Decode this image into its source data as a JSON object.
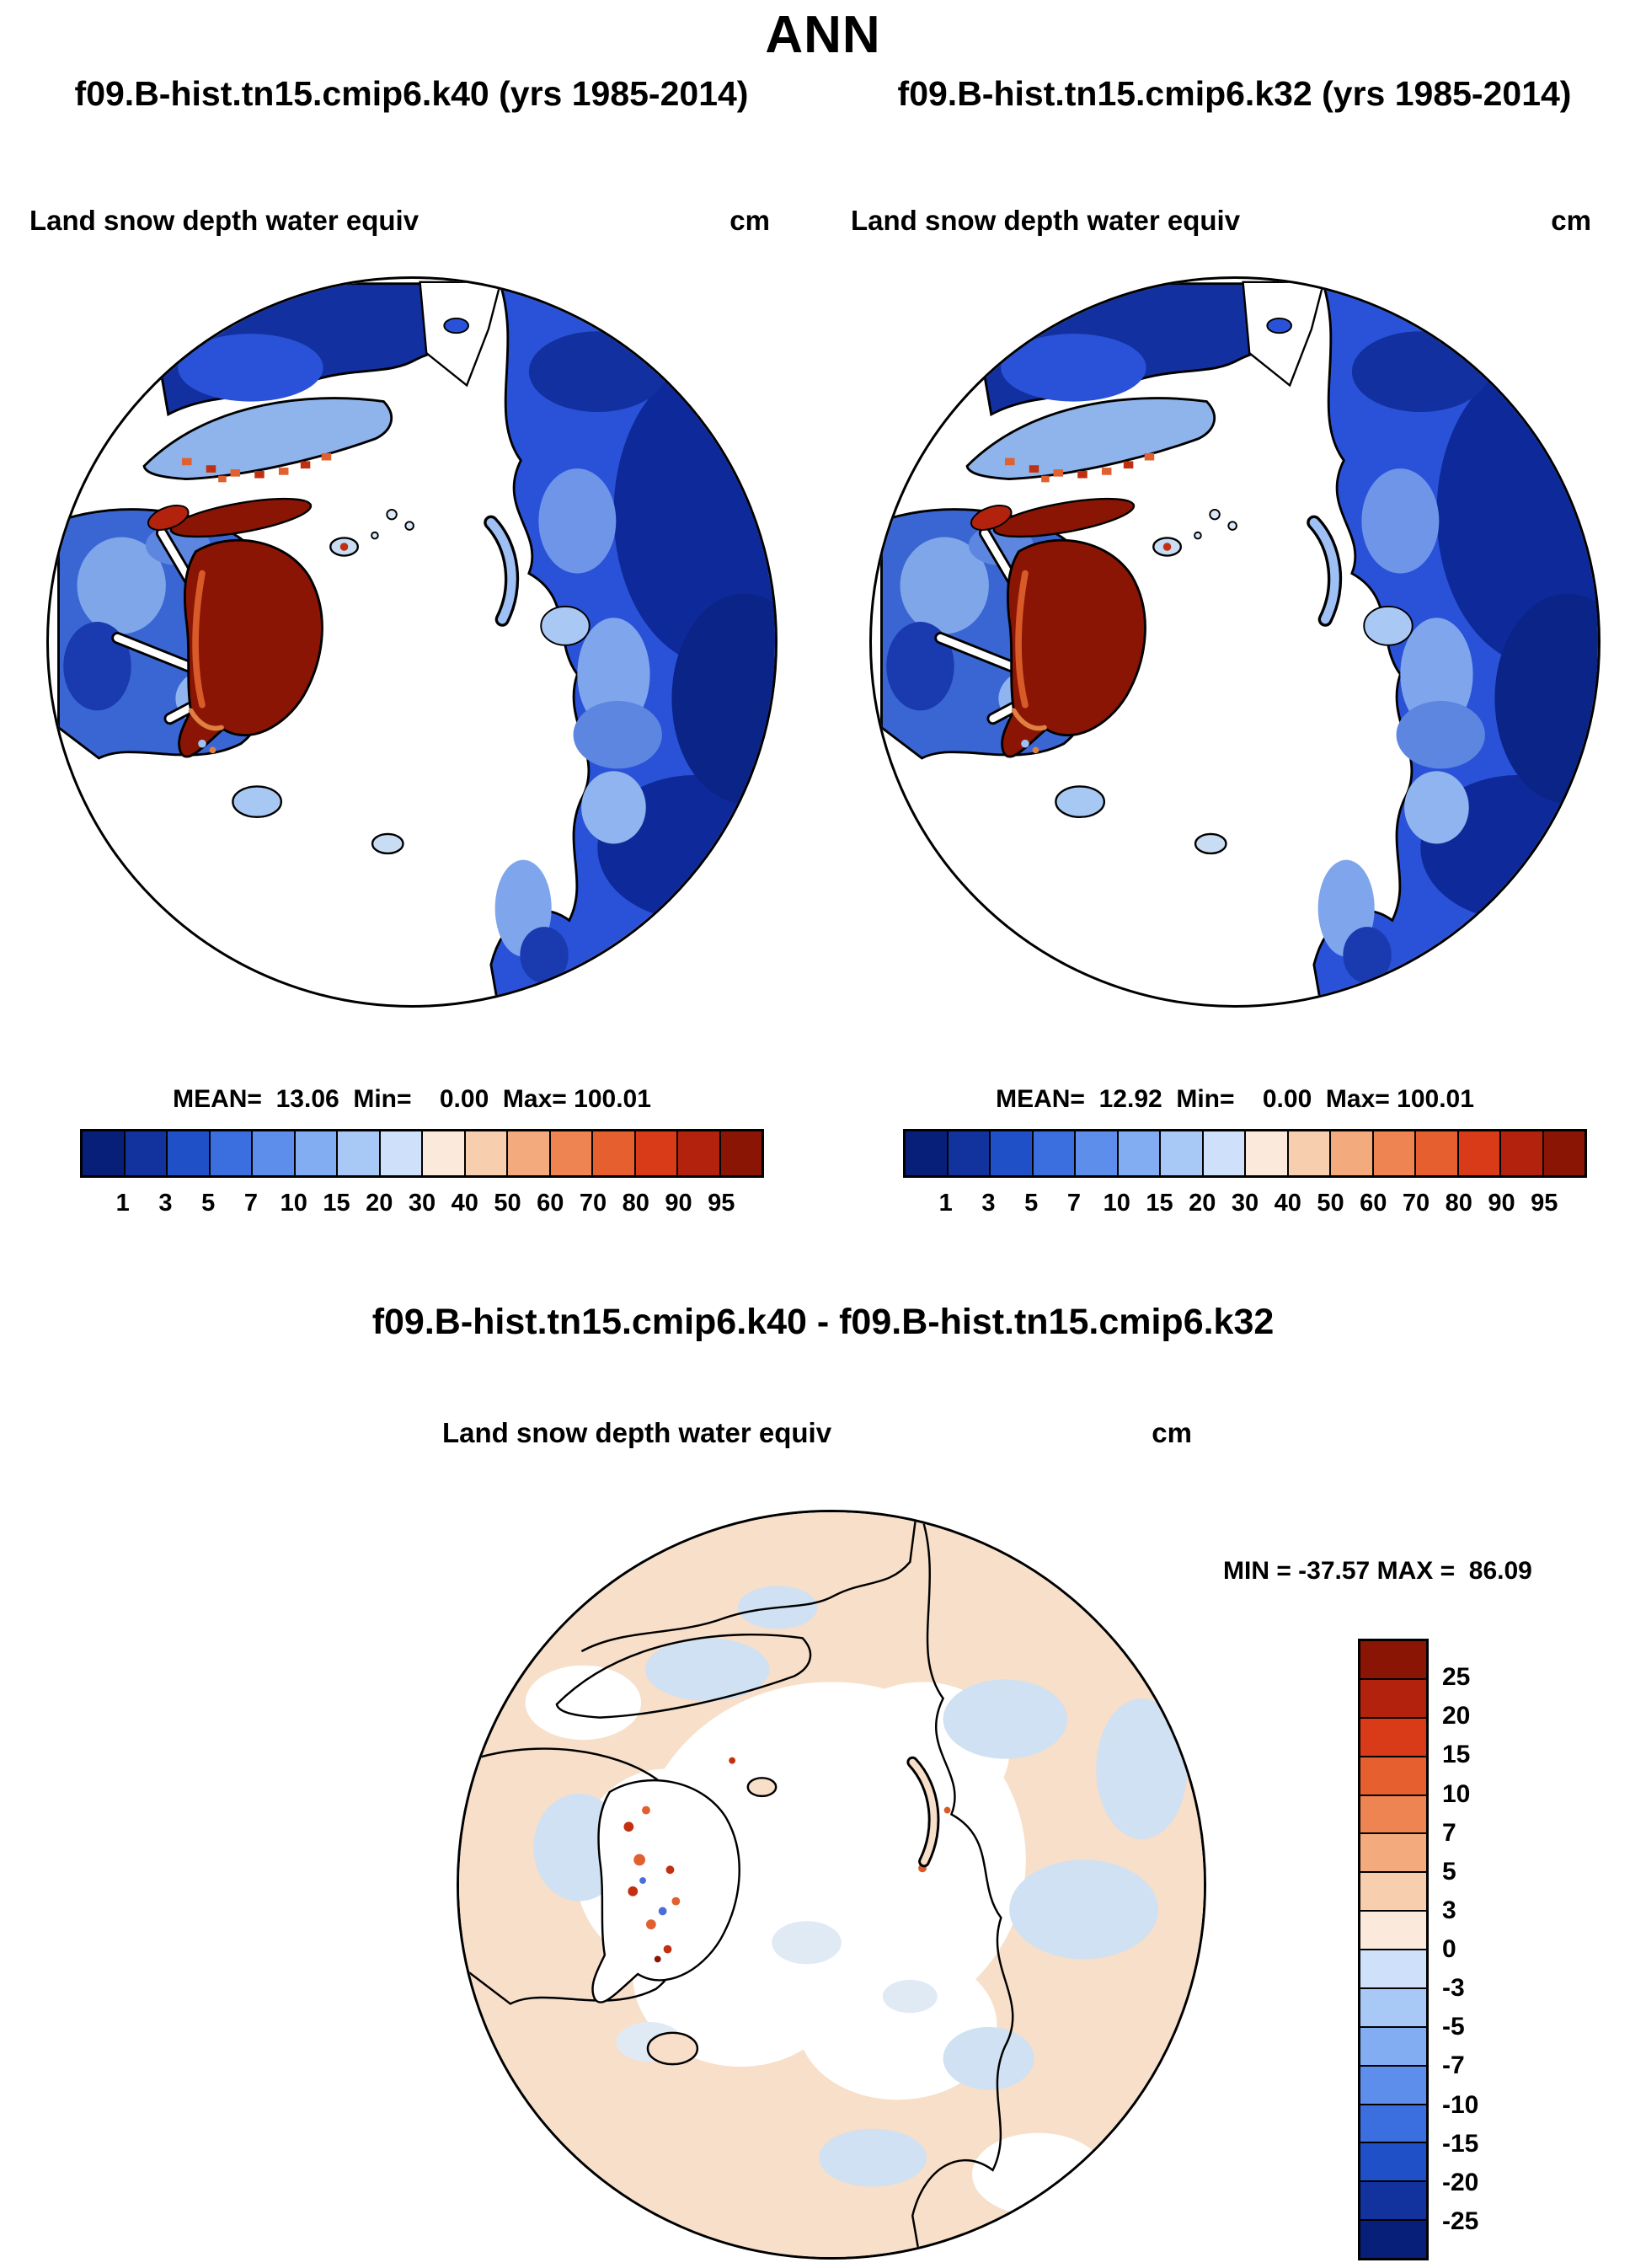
{
  "header": {
    "title": "ANN",
    "case_left": "f09.B-hist.tn15.cmip6.k40 (yrs 1985-2014)",
    "case_right": "f09.B-hist.tn15.cmip6.k32 (yrs 1985-2014)"
  },
  "panels": [
    {
      "title": "Land snow depth water equiv",
      "units": "cm",
      "stats": "MEAN=  13.06  Min=    0.00  Max= 100.01"
    },
    {
      "title": "Land snow depth water equiv",
      "units": "cm",
      "stats": "MEAN=  12.92  Min=    0.00  Max= 100.01"
    }
  ],
  "colorbar": {
    "ticks": [
      "1",
      "3",
      "5",
      "7",
      "10",
      "15",
      "20",
      "30",
      "40",
      "50",
      "60",
      "70",
      "80",
      "90",
      "95"
    ],
    "colors": [
      "#081f7a",
      "#12339e",
      "#2050c8",
      "#3b6fe0",
      "#5d8eec",
      "#82adf2",
      "#a8c8f6",
      "#cfe0fa",
      "#fbeadb",
      "#f8cfae",
      "#f3ab7e",
      "#ee8451",
      "#e65f2e",
      "#d93a17",
      "#b2220c",
      "#8a1505"
    ]
  },
  "diff": {
    "heading": "f09.B-hist.tn15.cmip6.k40 - f09.B-hist.tn15.cmip6.k32",
    "panel_title": "Land snow depth water equiv",
    "units": "cm",
    "minmax": "MIN = -37.57 MAX =  86.09",
    "colorbar": {
      "ticks": [
        "25",
        "20",
        "15",
        "10",
        "7",
        "5",
        "3",
        "0",
        "-3",
        "-5",
        "-7",
        "-10",
        "-15",
        "-20",
        "-25"
      ],
      "colors": [
        "#8a1505",
        "#b2220c",
        "#d93a17",
        "#e65f2e",
        "#ee8451",
        "#f3ab7e",
        "#f8cfae",
        "#fbeadb",
        "#cfe0fa",
        "#a8c8f6",
        "#82adf2",
        "#5d8eec",
        "#3b6fe0",
        "#2050c8",
        "#12339e",
        "#081f7a"
      ]
    }
  },
  "chart_data": [
    {
      "type": "heatmap",
      "projection": "north-polar-stereographic",
      "title": "Land snow depth water equiv",
      "units": "cm",
      "case": "f09.B-hist.tn15.cmip6.k40 (yrs 1985-2014)",
      "season": "ANN",
      "mean": 13.06,
      "min": 0.0,
      "max": 100.01,
      "levels": [
        1,
        3,
        5,
        7,
        10,
        15,
        20,
        30,
        40,
        50,
        60,
        70,
        80,
        90,
        95
      ],
      "legend_position": "bottom"
    },
    {
      "type": "heatmap",
      "projection": "north-polar-stereographic",
      "title": "Land snow depth water equiv",
      "units": "cm",
      "case": "f09.B-hist.tn15.cmip6.k32 (yrs 1985-2014)",
      "season": "ANN",
      "mean": 12.92,
      "min": 0.0,
      "max": 100.01,
      "levels": [
        1,
        3,
        5,
        7,
        10,
        15,
        20,
        30,
        40,
        50,
        60,
        70,
        80,
        90,
        95
      ],
      "legend_position": "bottom"
    },
    {
      "type": "heatmap",
      "projection": "north-polar-stereographic",
      "title": "Land snow depth water equiv",
      "units": "cm",
      "case": "f09.B-hist.tn15.cmip6.k40 - f09.B-hist.tn15.cmip6.k32",
      "season": "ANN",
      "min": -37.57,
      "max": 86.09,
      "levels": [
        25,
        20,
        15,
        10,
        7,
        5,
        3,
        0,
        -3,
        -5,
        -7,
        -10,
        -15,
        -20,
        -25
      ],
      "legend_position": "right"
    }
  ]
}
